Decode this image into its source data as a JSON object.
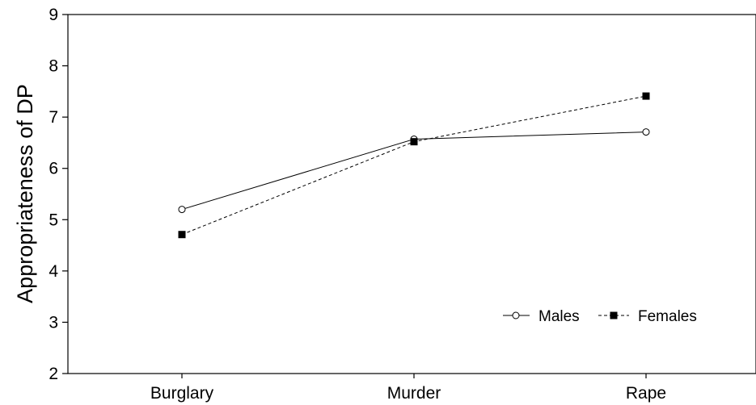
{
  "chart_data": {
    "type": "line",
    "title": "",
    "xlabel": "",
    "ylabel": "Appropriateness of DP",
    "categories": [
      "Burglary",
      "Murder",
      "Rape"
    ],
    "ylim": [
      2,
      9
    ],
    "yticks": [
      2,
      3,
      4,
      5,
      6,
      7,
      8,
      9
    ],
    "grid": false,
    "legend_position": "bottom-right",
    "series": [
      {
        "name": "Males",
        "values": [
          5.2,
          6.57,
          6.71
        ],
        "marker": "open-circle",
        "line": "solid",
        "color": "#000000"
      },
      {
        "name": "Females",
        "values": [
          4.71,
          6.52,
          7.41
        ],
        "marker": "filled-square",
        "line": "dashed",
        "color": "#000000"
      }
    ]
  }
}
